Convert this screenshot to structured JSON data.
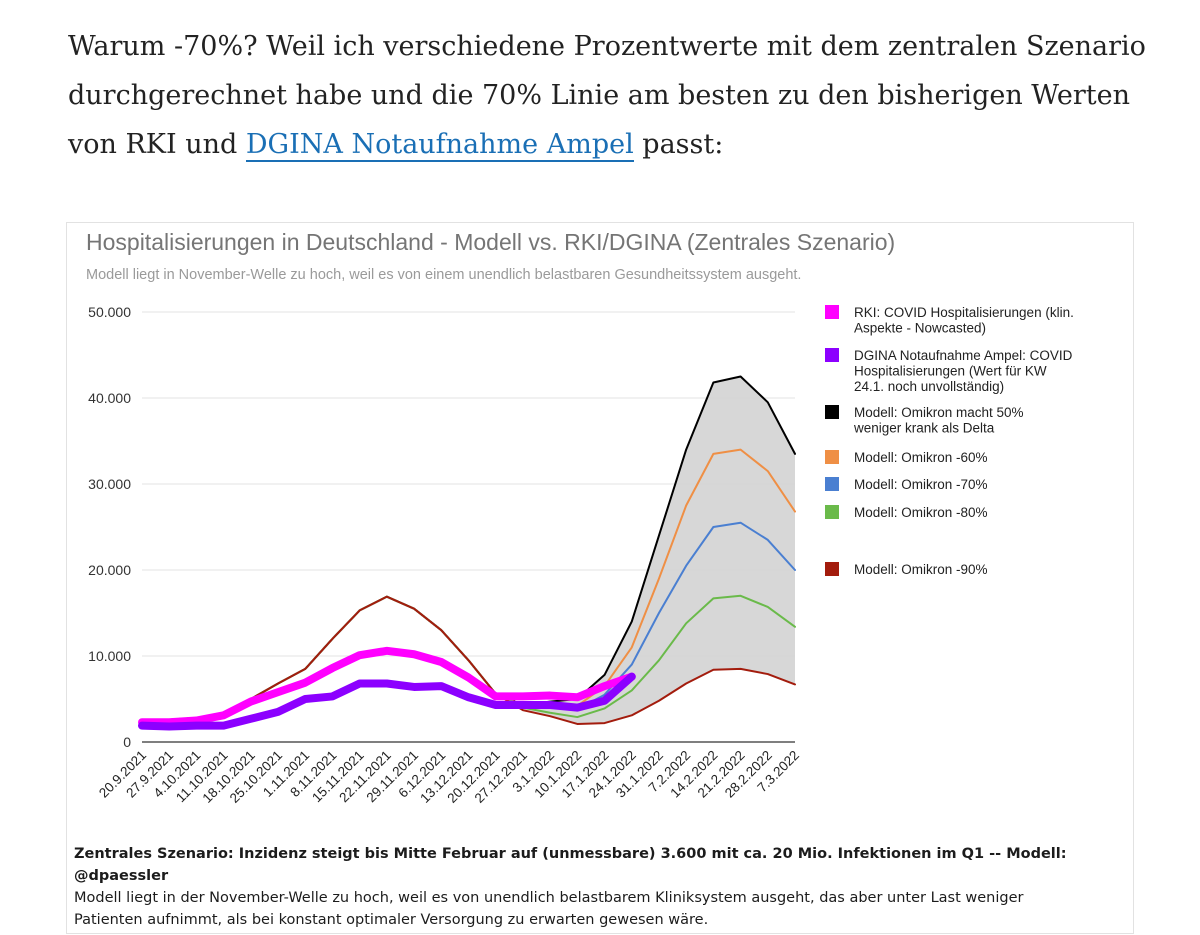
{
  "article": {
    "text_before": "Warum -70%? Weil ich verschiedene Prozentwerte mit dem zentralen Szenario durchgerechnet habe und die 70% Linie am besten zu den bisherigen Werten von RKI und ",
    "link_text": "DGINA Notaufnahme Ampel",
    "text_after": " passt:"
  },
  "chart_data": {
    "type": "line",
    "title": "Hospitalisierungen in Deutschland - Modell vs. RKI/DGINA (Zentrales Szenario)",
    "subtitle": "Modell liegt in November-Welle zu hoch, weil es von einem unendlich belastbaren Gesundheitssystem ausgeht.",
    "xlabel": "",
    "ylabel": "",
    "ylim": [
      0,
      50000
    ],
    "yticks": [
      0,
      10000,
      20000,
      30000,
      40000,
      50000
    ],
    "ytick_labels": [
      "0",
      "10.000",
      "20.000",
      "30.000",
      "40.000",
      "50.000"
    ],
    "grid": true,
    "legend_position": "right",
    "categories": [
      "20.9.2021",
      "27.9.2021",
      "4.10.2021",
      "11.10.2021",
      "18.10.2021",
      "25.10.2021",
      "1.11.2021",
      "8.11.2021",
      "15.11.2021",
      "22.11.2021",
      "29.11.2021",
      "6.12.2021",
      "13.12.2021",
      "20.12.2021",
      "27.12.2021",
      "3.1.2022",
      "10.1.2022",
      "17.1.2022",
      "24.1.2022",
      "31.1.2022",
      "7.2.2022",
      "14.2.2022",
      "21.2.2022",
      "28.2.2022",
      "7.3.2022"
    ],
    "band_between": [
      "Modell: Omikron macht 50% weniger krank als Delta",
      "Modell: Omikron -90%"
    ],
    "band_color": "#d3d3d3",
    "series": [
      {
        "name": "Modell: Omikron macht 50% weniger krank als Delta",
        "color": "#000000",
        "width": 2,
        "values": [
          2500,
          2600,
          2800,
          3300,
          5000,
          6800,
          8500,
          12000,
          15300,
          16900,
          15500,
          13000,
          9500,
          5600,
          4300,
          4700,
          5000,
          7800,
          14000,
          24000,
          34000,
          41800,
          42500,
          39500,
          33500
        ]
      },
      {
        "name": "Modell: Omikron -60%",
        "color": "#ef8f45",
        "width": 2,
        "values": [
          2500,
          2600,
          2800,
          3300,
          5000,
          6800,
          8500,
          12000,
          15300,
          16900,
          15500,
          13000,
          9500,
          5600,
          4200,
          4300,
          4200,
          6500,
          11000,
          19000,
          27500,
          33500,
          34000,
          31500,
          26800
        ]
      },
      {
        "name": "Modell: Omikron -70%",
        "color": "#4a7fd1",
        "width": 2,
        "values": [
          2500,
          2600,
          2800,
          3300,
          5000,
          6800,
          8500,
          12000,
          15300,
          16900,
          15500,
          13000,
          9500,
          5600,
          4100,
          4000,
          3800,
          5500,
          9000,
          15000,
          20500,
          25000,
          25500,
          23500,
          20000
        ]
      },
      {
        "name": "Modell: Omikron -80%",
        "color": "#6aba4a",
        "width": 2,
        "values": [
          2500,
          2600,
          2800,
          3300,
          5000,
          6800,
          8500,
          12000,
          15300,
          16900,
          15500,
          13000,
          9500,
          5600,
          4000,
          3400,
          2900,
          3900,
          6000,
          9500,
          13800,
          16700,
          17000,
          15700,
          13400
        ]
      },
      {
        "name": "Modell: Omikron -90%",
        "color": "#a31c0d",
        "width": 2,
        "values": [
          2500,
          2600,
          2800,
          3300,
          5000,
          6800,
          8500,
          12000,
          15300,
          16900,
          15500,
          13000,
          9500,
          5600,
          3700,
          3000,
          2100,
          2200,
          3100,
          4800,
          6800,
          8400,
          8500,
          7900,
          6700
        ]
      },
      {
        "name": "RKI: COVID Hospitalisierungen (klin. Aspekte - Nowcasted)",
        "color": "#ff00ff",
        "width": 8,
        "values": [
          2300,
          2300,
          2500,
          3100,
          4700,
          5800,
          6900,
          8600,
          10100,
          10600,
          10200,
          9300,
          7500,
          5300,
          5300,
          5400,
          5200,
          6500,
          7600,
          null,
          null,
          null,
          null,
          null,
          null
        ]
      },
      {
        "name": "DGINA Notaufnahme Ampel: COVID Hospitalisierungen (Wert für KW 24.1. noch unvollständig)",
        "color": "#8c00ff",
        "width": 8,
        "values": [
          1900,
          1800,
          1900,
          1900,
          2700,
          3500,
          5000,
          5300,
          6800,
          6800,
          6400,
          6500,
          5200,
          4300,
          4300,
          4300,
          4000,
          4800,
          7600,
          null,
          null,
          null,
          null,
          null,
          null
        ]
      }
    ]
  },
  "caption": {
    "bold": "Zentrales Szenario: Inzidenz steigt bis Mitte Februar auf (unmessbare) 3.600 mit ca. 20 Mio. Infektionen im Q1 -- Modell: @dpaessler",
    "line2": "Modell liegt in der November-Welle zu hoch, weil es von unendlich belastbarem Kliniksystem ausgeht, das aber unter Last weniger",
    "line3": "Patienten aufnimmt, als bei konstant optimaler Versorgung zu erwarten gewesen wäre."
  }
}
